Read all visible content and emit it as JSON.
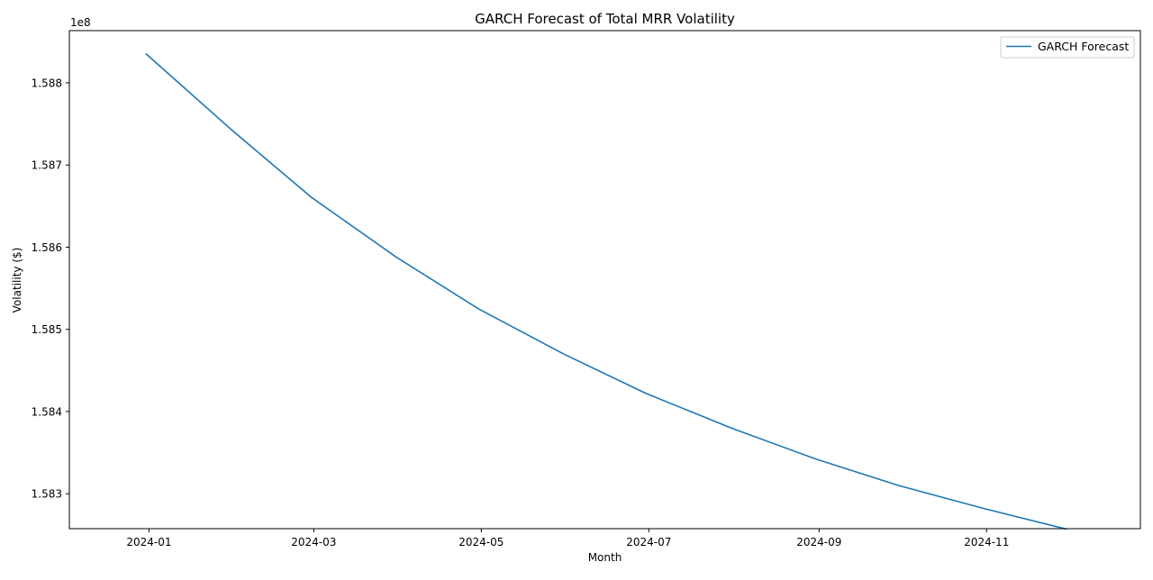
{
  "chart_data": {
    "type": "line",
    "title": "GARCH Forecast of Total MRR Volatility",
    "xlabel": "Month",
    "ylabel": "Volatility ($)",
    "y_offset_label": "1e8",
    "y_scale_factor": 100000000,
    "x_axis": "date",
    "xlim": [
      "2023-12-03",
      "2024-12-27"
    ],
    "ylim": [
      158.2575,
      158.8635
    ],
    "x_ticks": [
      "2024-01-01",
      "2024-03-01",
      "2024-05-01",
      "2024-07-01",
      "2024-09-01",
      "2024-11-01"
    ],
    "x_tick_labels": [
      "2024-01",
      "2024-03",
      "2024-05",
      "2024-07",
      "2024-09",
      "2024-11"
    ],
    "y_ticks": [
      158.3,
      158.4,
      158.5,
      158.6,
      158.7,
      158.8
    ],
    "y_tick_labels": [
      "1.583",
      "1.584",
      "1.585",
      "1.586",
      "1.587",
      "1.588"
    ],
    "grid": false,
    "legend_position": "top-right",
    "series": [
      {
        "name": "GARCH Forecast",
        "color": "#1f77b4",
        "x": [
          "2023-12-31",
          "2024-01-31",
          "2024-02-29",
          "2024-03-31",
          "2024-04-30",
          "2024-05-31",
          "2024-06-30",
          "2024-07-31",
          "2024-08-31",
          "2024-09-30",
          "2024-10-31",
          "2024-11-30"
        ],
        "y": [
          158.835,
          158.743,
          158.661,
          158.588,
          158.525,
          158.47,
          158.422,
          158.38,
          158.342,
          158.31,
          158.282,
          158.257
        ]
      }
    ]
  }
}
